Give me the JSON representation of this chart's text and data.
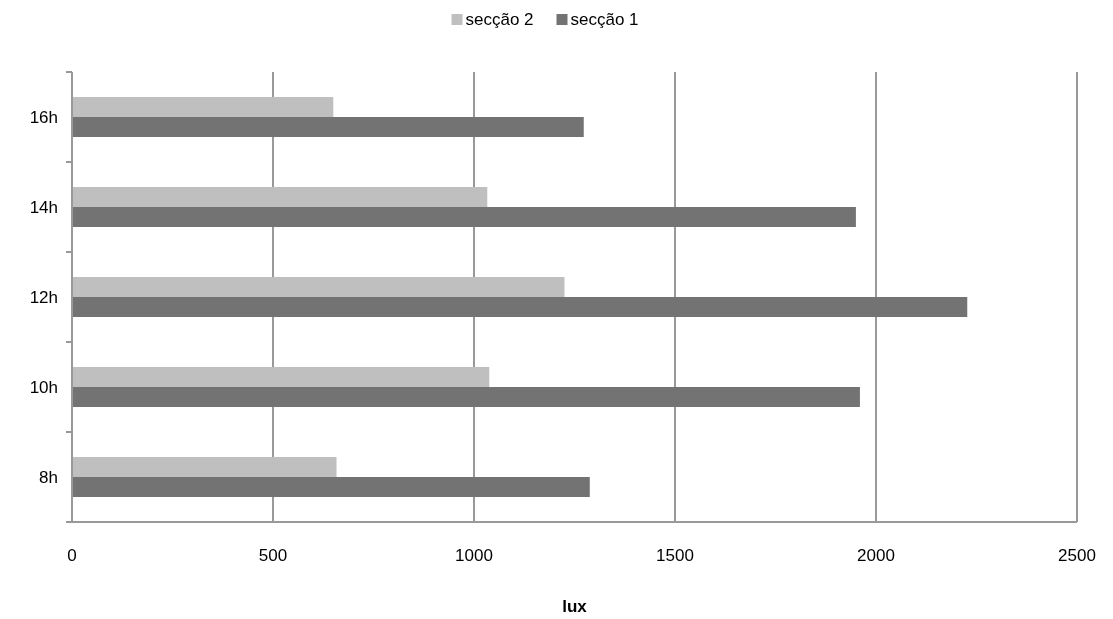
{
  "chart_data": {
    "type": "bar",
    "orientation": "horizontal",
    "xlabel": "lux",
    "categories": [
      "16h",
      "14h",
      "12h",
      "10h",
      "8h"
    ],
    "series": [
      {
        "name": "secção 2",
        "color": "#bfbfbf",
        "values": [
          650,
          1033,
          1225,
          1038,
          658
        ]
      },
      {
        "name": "secção 1",
        "color": "#737373",
        "values": [
          1273,
          1950,
          2227,
          1960,
          1288
        ]
      }
    ],
    "xlim": [
      0,
      2500
    ],
    "xticks": [
      0,
      500,
      1000,
      1500,
      2000,
      2500
    ],
    "grid": "x",
    "legend": "top"
  }
}
